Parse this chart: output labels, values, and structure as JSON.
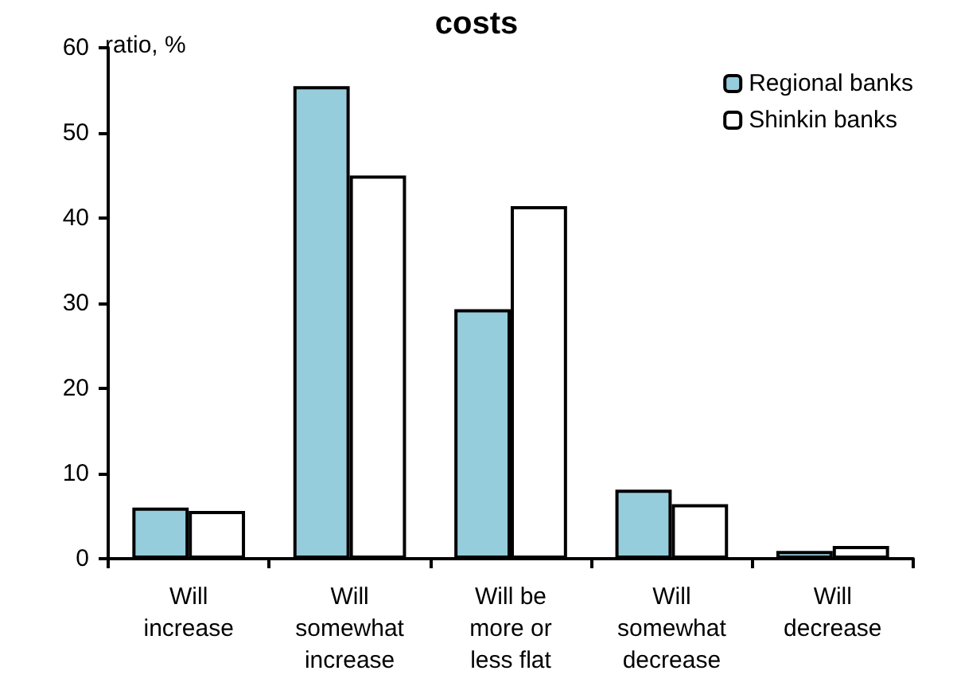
{
  "chart_data": {
    "type": "bar",
    "title": "costs",
    "ylabel": "ratio, %",
    "categories": [
      "Will\nincrease",
      "Will\nsomewhat\nincrease",
      "Will be\nmore or\nless flat",
      "Will\nsomewhat\ndecrease",
      "Will\ndecrease"
    ],
    "series": [
      {
        "name": "Regional banks",
        "color": "#96cddc",
        "values": [
          6.0,
          55.5,
          29.3,
          8.1,
          0.9
        ]
      },
      {
        "name": "Shinkin banks",
        "color": "#ffffff",
        "values": [
          5.6,
          45.0,
          41.4,
          6.4,
          1.5
        ]
      }
    ],
    "ylim": [
      0,
      60
    ],
    "yticks": [
      0,
      10,
      20,
      30,
      40,
      50,
      60
    ],
    "grid": false,
    "legend": "top right"
  }
}
